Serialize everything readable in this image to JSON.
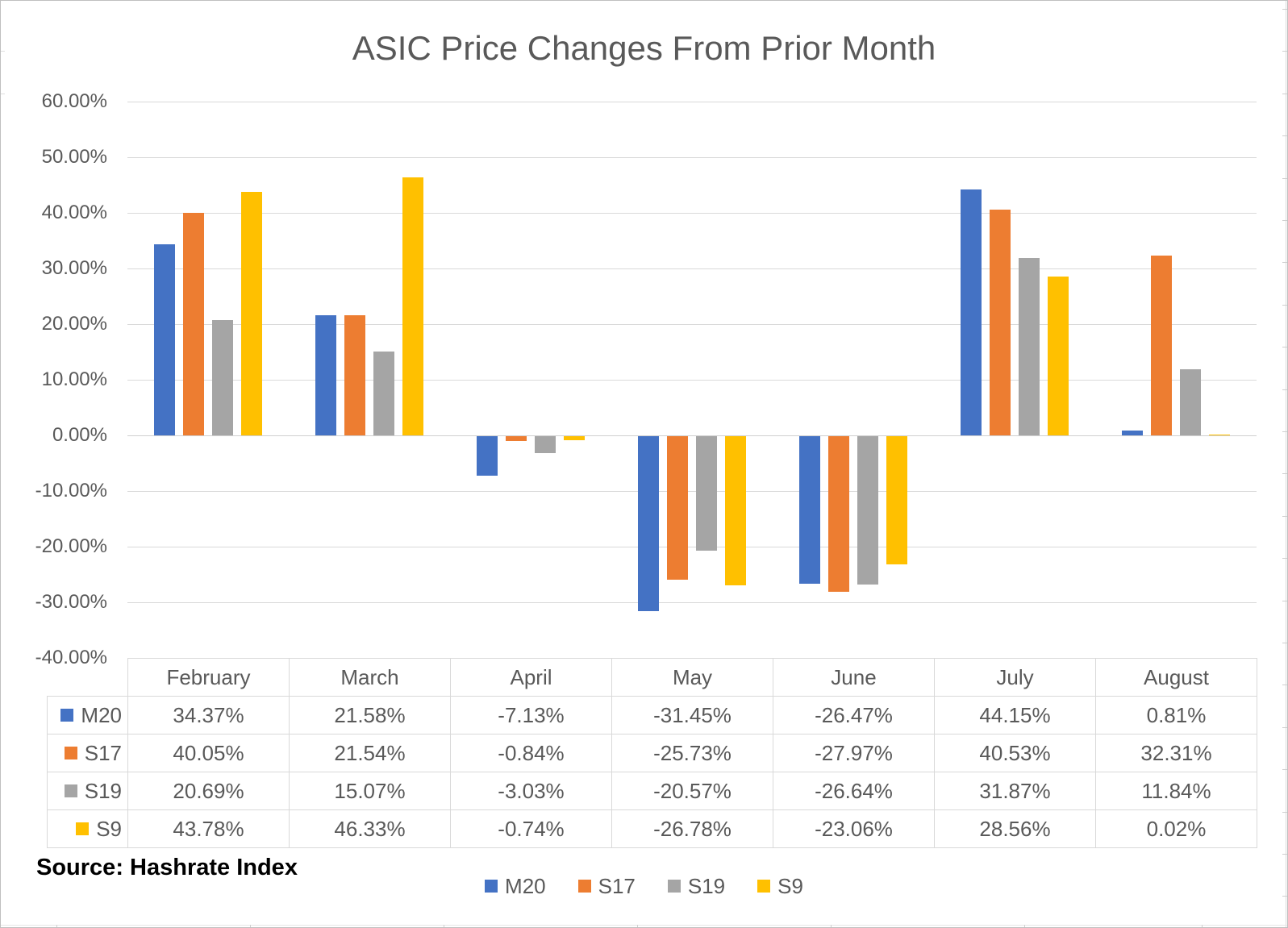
{
  "title": "ASIC Price Changes From Prior Month",
  "source_note": "Source: Hashrate Index",
  "colors": {
    "m20_blue": "#4472C4",
    "s17_orange": "#ED7D31",
    "s19_gray": "#A5A5A5",
    "s9_yellow": "#FFC000",
    "gridline": "#D9D9D9",
    "text": "#595959"
  },
  "chart_data": {
    "type": "bar",
    "title": "ASIC Price Changes From Prior Month",
    "categories": [
      "February",
      "March",
      "April",
      "May",
      "June",
      "July",
      "August"
    ],
    "series": [
      {
        "name": "M20",
        "color": "#4472C4",
        "values": [
          34.37,
          21.58,
          -7.13,
          -31.45,
          -26.47,
          44.15,
          0.81
        ],
        "labels": [
          "34.37%",
          "21.58%",
          "-7.13%",
          "-31.45%",
          "-26.47%",
          "44.15%",
          "0.81%"
        ]
      },
      {
        "name": "S17",
        "color": "#ED7D31",
        "values": [
          40.05,
          21.54,
          -0.84,
          -25.73,
          -27.97,
          40.53,
          32.31
        ],
        "labels": [
          "40.05%",
          "21.54%",
          "-0.84%",
          "-25.73%",
          "-27.97%",
          "40.53%",
          "32.31%"
        ]
      },
      {
        "name": "S19",
        "color": "#A5A5A5",
        "values": [
          20.69,
          15.07,
          -3.03,
          -20.57,
          -26.64,
          31.87,
          11.84
        ],
        "labels": [
          "20.69%",
          "15.07%",
          "-3.03%",
          "-20.57%",
          "-26.64%",
          "31.87%",
          "11.84%"
        ]
      },
      {
        "name": "S9",
        "color": "#FFC000",
        "values": [
          43.78,
          46.33,
          -0.74,
          -26.78,
          -23.06,
          28.56,
          0.02
        ],
        "labels": [
          "43.78%",
          "46.33%",
          "-0.74%",
          "-26.78%",
          "-23.06%",
          "28.56%",
          "0.02%"
        ]
      }
    ],
    "ylim": [
      -40,
      60
    ],
    "yticks": [
      "60.00%",
      "50.00%",
      "40.00%",
      "30.00%",
      "20.00%",
      "10.00%",
      "0.00%",
      "-10.00%",
      "-20.00%",
      "-30.00%",
      "-40.00%"
    ],
    "grid": true,
    "legend_position": "bottom",
    "legend_items": [
      "M20",
      "S17",
      "S19",
      "S9"
    ],
    "data_table_shown": true
  }
}
